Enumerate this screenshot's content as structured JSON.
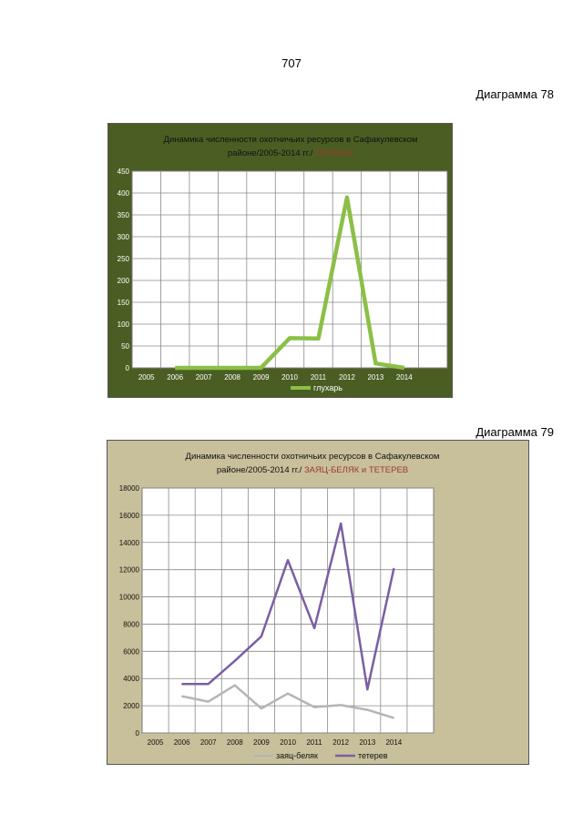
{
  "page_number": "707",
  "diagram_labels": [
    "Диаграмма 78",
    "Диаграмма 79"
  ],
  "colors": {
    "chart1_bg": "#4a5e23",
    "chart2_bg": "#c8c09a",
    "glukhar": "#8cbf46",
    "zayats": "#b5b5b5",
    "teterev": "#7b5ea3",
    "accent_title": "#a0392b"
  },
  "chart_data": [
    {
      "type": "line",
      "title_line1": "Динамика численности охотничьих ресурсов  в Сафакулевском",
      "title_line2_prefix": "районе/2005-2014 гг./",
      "title_line2_accent": "ГЛУХАРЬ",
      "categories": [
        "2005",
        "2006",
        "2007",
        "2008",
        "2009",
        "2010",
        "2011",
        "2012",
        "2013",
        "2014"
      ],
      "yticks": [
        "0",
        "50",
        "100",
        "150",
        "200",
        "250",
        "300",
        "350",
        "400",
        "450"
      ],
      "ylim": [
        0,
        450
      ],
      "grid": true,
      "legend_position": "bottom",
      "series": [
        {
          "name": "глухарь",
          "values": [
            null,
            0,
            0,
            0,
            0,
            68,
            67,
            390,
            10,
            0
          ]
        }
      ]
    },
    {
      "type": "line",
      "title_line1": "Динамика численности  охотничьих ресурсов   в Сафакулевском",
      "title_line2_prefix": "районе/2005-2014  гг./",
      "title_line2_accent": "ЗАЯЦ-БЕЛЯК и ТЕТЕРЕВ",
      "categories": [
        "2005",
        "2006",
        "2007",
        "2008",
        "2009",
        "2010",
        "2011",
        "2012",
        "2013",
        "2014"
      ],
      "yticks": [
        "0",
        "2000",
        "4000",
        "6000",
        "8000",
        "10000",
        "12000",
        "14000",
        "16000",
        "18000"
      ],
      "ylim": [
        0,
        18000
      ],
      "grid": true,
      "legend_position": "bottom",
      "series": [
        {
          "name": "заяц-беляк",
          "values": [
            null,
            2700,
            2300,
            3500,
            1800,
            2900,
            1900,
            2050,
            1700,
            1100
          ]
        },
        {
          "name": "тетерев",
          "values": [
            null,
            3600,
            3600,
            5300,
            7100,
            12700,
            7700,
            15400,
            3200,
            12100
          ]
        }
      ]
    }
  ]
}
